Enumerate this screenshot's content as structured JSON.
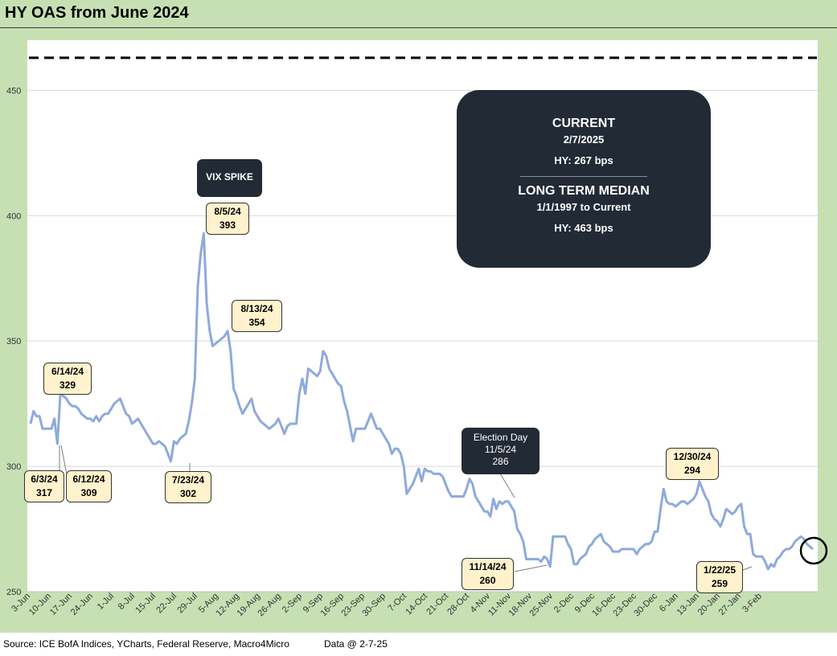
{
  "title": "HY OAS from June 2024",
  "footer": {
    "source": "Source: ICE BofA Indices, YCharts, Federal Reserve, Macro4Micro",
    "data_date": "Data @ 2-7-25"
  },
  "info_box": {
    "current_heading": "CURRENT",
    "current_date": "2/7/2025",
    "current_value": "HY: 267 bps",
    "median_heading": "LONG TERM MEDIAN",
    "median_range": "1/1/1997 to Current",
    "median_value": "HY: 463 bps"
  },
  "annotations": {
    "vix_spike": "VIX SPIKE",
    "election_day": "Election Day",
    "election_date": "11/5/24",
    "election_value": "286",
    "points": [
      {
        "id": "jun3",
        "date": "6/3/24",
        "value": "317"
      },
      {
        "id": "jun14",
        "date": "6/14/24",
        "value": "329"
      },
      {
        "id": "jun12",
        "date": "6/12/24",
        "value": "309"
      },
      {
        "id": "jul23",
        "date": "7/23/24",
        "value": "302"
      },
      {
        "id": "aug5",
        "date": "8/5/24",
        "value": "393"
      },
      {
        "id": "aug13",
        "date": "8/13/24",
        "value": "354"
      },
      {
        "id": "nov14",
        "date": "11/14/24",
        "value": "260"
      },
      {
        "id": "dec30",
        "date": "12/30/24",
        "value": "294"
      },
      {
        "id": "jan22",
        "date": "1/22/25",
        "value": "259"
      }
    ]
  },
  "chart_data": {
    "type": "line",
    "title": "HY OAS from June 2024",
    "xlabel": "",
    "ylabel": "",
    "ylim": [
      250,
      470
    ],
    "yticks": [
      250,
      300,
      350,
      400,
      450
    ],
    "xtick_labels": [
      "3-Jun",
      "10-Jun",
      "17-Jun",
      "24-Jun",
      "1-Jul",
      "8-Jul",
      "15-Jul",
      "22-Jul",
      "29-Jul",
      "5-Aug",
      "12-Aug",
      "19-Aug",
      "26-Aug",
      "2-Sep",
      "9-Sep",
      "16-Sep",
      "23-Sep",
      "30-Sep",
      "7-Oct",
      "14-Oct",
      "21-Oct",
      "28-Oct",
      "4-Nov",
      "11-Nov",
      "18-Nov",
      "25-Nov",
      "2-Dec",
      "9-Dec",
      "16-Dec",
      "23-Dec",
      "30-Dec",
      "6-Jan",
      "13-Jan",
      "20-Jan",
      "27-Jan",
      "3-Feb"
    ],
    "grid": true,
    "median_line": 463,
    "series": [
      {
        "color": "#8eaadb",
        "values": [
          317,
          322,
          320,
          320,
          315,
          315,
          315,
          315,
          319,
          309,
          329,
          328,
          327,
          325,
          324,
          324,
          323,
          321,
          320,
          319,
          319,
          318,
          320,
          318,
          320,
          321,
          321,
          323,
          325,
          326,
          327,
          324,
          321,
          320,
          317,
          318,
          319,
          317,
          315,
          313,
          311,
          309,
          309,
          310,
          309,
          308,
          305,
          302,
          310,
          309,
          311,
          312,
          313,
          318,
          325,
          335,
          372,
          385,
          393,
          365,
          354,
          348,
          349,
          350,
          351,
          352,
          354,
          346,
          331,
          328,
          324,
          321,
          323,
          325,
          327,
          322,
          320,
          318,
          317,
          316,
          315,
          316,
          317,
          319,
          316,
          313,
          316,
          317,
          317,
          317,
          329,
          335,
          329,
          339,
          338,
          337,
          336,
          338,
          346,
          344,
          339,
          337,
          335,
          333,
          332,
          326,
          322,
          316,
          310,
          315,
          315,
          315,
          315,
          318,
          321,
          318,
          315,
          315,
          313,
          311,
          309,
          305,
          307,
          307,
          305,
          300,
          289,
          291,
          293,
          296,
          299,
          294,
          299,
          298,
          298,
          297,
          297,
          297,
          296,
          293,
          290,
          288,
          288,
          288,
          288,
          288,
          291,
          295,
          293,
          288,
          286,
          284,
          282,
          282,
          280,
          287,
          283,
          286,
          285,
          286,
          286,
          284,
          282,
          275,
          273,
          270,
          263,
          263,
          263,
          263,
          263,
          262,
          264,
          263,
          260,
          272,
          272,
          272,
          272,
          272,
          269,
          267,
          261,
          261,
          263,
          264,
          265,
          268,
          269,
          271,
          272,
          273,
          270,
          269,
          268,
          266,
          266,
          266,
          267,
          267,
          267,
          267,
          267,
          265,
          267,
          268,
          269,
          269,
          270,
          274,
          274,
          283,
          291,
          286,
          285,
          285,
          284,
          285,
          286,
          286,
          285,
          286,
          287,
          289,
          294,
          291,
          288,
          286,
          281,
          279,
          278,
          276,
          279,
          283,
          282,
          281,
          282,
          284,
          285,
          276,
          273,
          273,
          265,
          264,
          264,
          264,
          262,
          259,
          261,
          260,
          263,
          264,
          266,
          267,
          267,
          268,
          270,
          271,
          272,
          271,
          269,
          268,
          267
        ]
      }
    ]
  },
  "end_marker_icon": "circle-marker-icon"
}
